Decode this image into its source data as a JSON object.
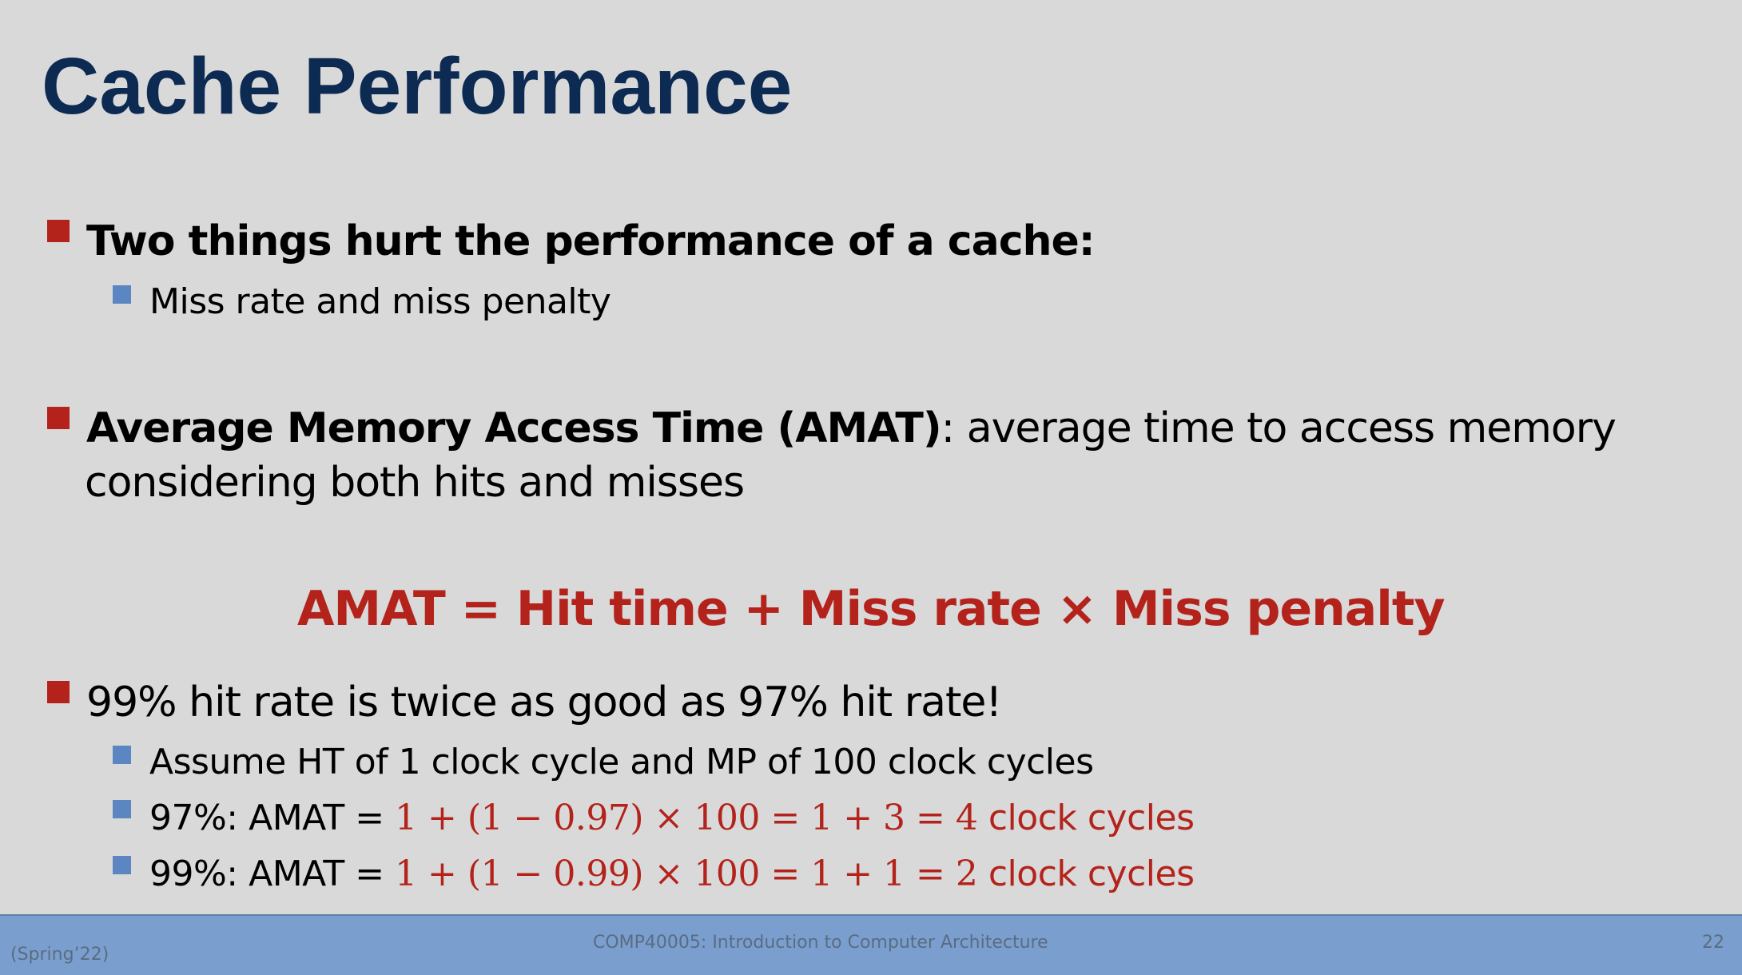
{
  "slide": {
    "title": "Cache Performance"
  },
  "bullets": {
    "b1": {
      "text": "Two things hurt the performance of a cache:",
      "sub": [
        "Miss rate and miss penalty"
      ]
    },
    "b2": {
      "term": "Average Memory Access Time (AMAT)",
      "definition": ": average time to access memory",
      "continuation": "considering both hits and misses"
    },
    "formula": "AMAT = Hit time + Miss rate × Miss penalty",
    "b3": {
      "text": "99% hit rate is twice as good as 97% hit rate!",
      "sub": [
        {
          "text": "Assume HT of 1 clock cycle and MP of 100 clock cycles"
        },
        {
          "text": "97%: AMAT = ",
          "math": "1 + (1 − 0.97) × 100 = 1 + 3 = 4",
          "unit": " clock cycles"
        },
        {
          "text": "99%: AMAT = ",
          "math": "1 + (1 − 0.99) × 100 = 1 + 1 = 2",
          "unit": " clock cycles"
        }
      ]
    }
  },
  "footer": {
    "left": "(Spring’22)",
    "center": "COMP40005: Introduction to Computer Architecture",
    "page": "22"
  },
  "colors": {
    "title": "#0d2a52",
    "accent_red": "#b4231b",
    "sub_bullet_blue": "#5b86c2",
    "footer_bar": "#7a9fcf",
    "background": "#d9d9d9"
  }
}
